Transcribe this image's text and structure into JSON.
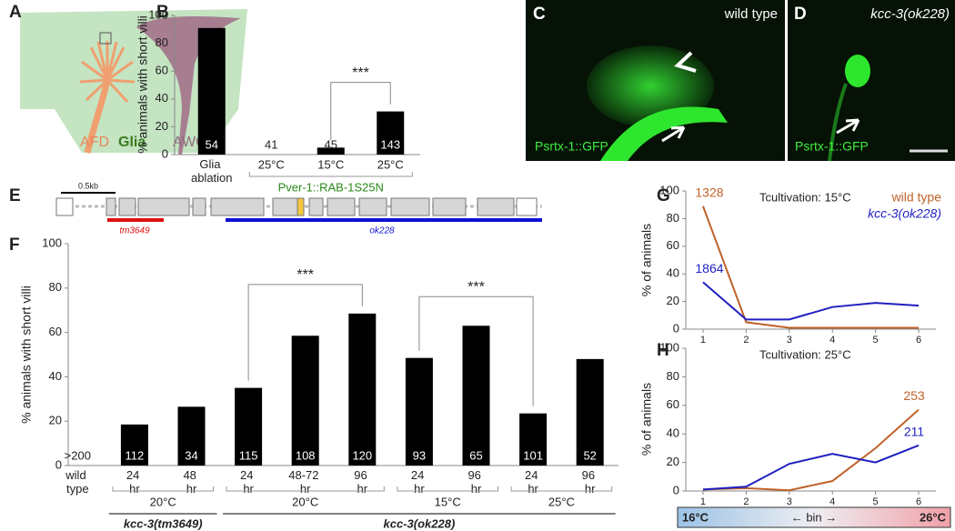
{
  "panels": {
    "A": {
      "letter": "A",
      "labels": [
        "AFD",
        "Glia",
        "AWC"
      ]
    },
    "C": {
      "letter": "C",
      "genotype": "wild type",
      "reporter": "Psrtx-1::GFP"
    },
    "D": {
      "letter": "D",
      "genotype": "kcc-3(ok228)",
      "reporter": "Psrtx-1::GFP"
    },
    "E": {
      "letter": "E",
      "scale": "0.5kb",
      "alleles": [
        "tm3649",
        "ok228"
      ]
    }
  },
  "chart_data": [
    {
      "type": "bar",
      "panel": "B",
      "y_label": "% animals with short villi",
      "categories": [
        "Glia ablation",
        "25°C",
        "15°C",
        "25°C"
      ],
      "values": [
        91,
        0,
        5,
        31
      ],
      "n_labels": [
        "54",
        "41",
        "45",
        "143"
      ],
      "color": "#000000",
      "ylim": [
        0,
        100
      ],
      "yticks": [
        0,
        20,
        40,
        60,
        80,
        100
      ],
      "groups": [
        "Pver-1::RAB-1S25N"
      ],
      "annotations": [
        "***"
      ]
    },
    {
      "type": "bar",
      "panel": "F",
      "y_label": "% animals with short villi",
      "categories": [
        "wild type",
        "24 hr",
        "48 hr",
        "24 hr",
        "48-72 hr",
        "96 hr",
        "24 hr",
        "96 hr",
        "24 hr",
        "96 hr"
      ],
      "values": [
        0,
        18.5,
        26.5,
        35,
        58.5,
        68.5,
        48.5,
        63,
        23.5,
        48
      ],
      "n_labels": [
        ">200",
        "112",
        "34",
        "115",
        "108",
        "120",
        "93",
        "65",
        "101",
        "52"
      ],
      "color": "#000000",
      "ylim": [
        0,
        100
      ],
      "yticks": [
        0,
        20,
        40,
        60,
        80,
        100
      ],
      "groups": [
        "20°C",
        "20°C",
        "15°C",
        "25°C"
      ],
      "strains": [
        "kcc-3(tm3649)",
        "kcc-3(ok228)"
      ],
      "annotations": [
        "***",
        "***"
      ]
    },
    {
      "type": "line",
      "panel": "G",
      "title": "Tcultivation: 15°C",
      "y_label": "% of animals",
      "x": [
        1,
        2,
        3,
        4,
        5,
        6
      ],
      "xlim": [
        0.6,
        6.4
      ],
      "xticks": [
        1,
        2,
        3,
        4,
        5,
        6
      ],
      "ylim": [
        0,
        100
      ],
      "yticks": [
        0,
        20,
        40,
        60,
        80,
        100
      ],
      "series": [
        {
          "name": "wild type",
          "color": "#c0622a",
          "values": [
            89,
            5,
            1,
            1,
            1,
            1
          ],
          "n": 1328
        },
        {
          "name": "kcc-3(ok228)",
          "color": "#1f1fc0",
          "values": [
            34,
            7,
            7,
            16,
            19,
            17
          ],
          "n": 1864
        }
      ]
    },
    {
      "type": "line",
      "panel": "H",
      "title": "Tcultivation: 25°C",
      "y_label": "% of animals",
      "x": [
        1,
        2,
        3,
        4,
        5,
        6
      ],
      "xlim": [
        0.6,
        6.4
      ],
      "xticks": [
        1,
        2,
        3,
        4,
        5,
        6
      ],
      "ylim": [
        0,
        100
      ],
      "yticks": [
        0,
        20,
        40,
        60,
        80,
        100
      ],
      "series": [
        {
          "color": "#c0622a",
          "values": [
            1,
            2,
            0.5,
            7,
            30,
            57
          ],
          "n": 253
        },
        {
          "color": "#1f1fc0",
          "values": [
            1,
            3,
            19,
            26,
            20,
            32
          ],
          "n": 211
        }
      ],
      "bin_bar": {
        "left": "16°C",
        "center": "←  bin  →",
        "right": "26°C"
      }
    }
  ]
}
